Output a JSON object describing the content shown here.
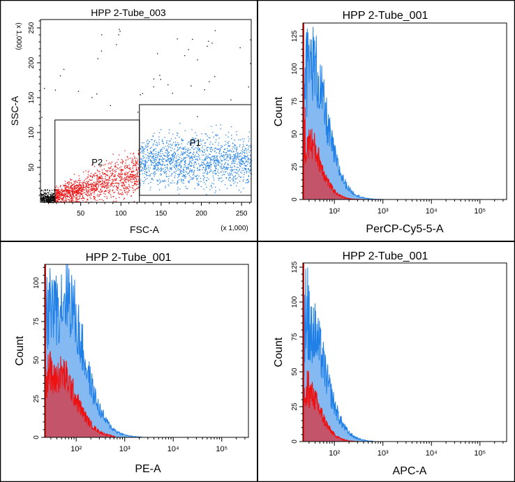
{
  "colors": {
    "p1": "#1f7fe6",
    "p2": "#ee1111",
    "overlap": "#b5366a",
    "black": "#000000",
    "frame": "#000000"
  },
  "chart_data": [
    {
      "type": "scatter",
      "title": "HPP 2-Tube_003",
      "xlabel": "FSC-A",
      "ylabel": "SSC-A",
      "xlim": [
        0,
        262
      ],
      "ylim": [
        0,
        262
      ],
      "x_multiplier_label": "(x 1,000)",
      "y_multiplier_label": "(x 1,000)",
      "xticks": [
        "50",
        "100",
        "150",
        "200",
        "250"
      ],
      "yticks": [
        "50",
        "100",
        "150",
        "200",
        "250"
      ],
      "gates": [
        {
          "name": "P1",
          "x": [
            123,
            262
          ],
          "y": [
            10,
            140
          ],
          "color": "#1f7fe6",
          "events": 1500,
          "y_center": 60
        },
        {
          "name": "P2",
          "x": [
            18,
            123
          ],
          "y": [
            0,
            118
          ],
          "color": "#ee1111",
          "events": 1300
        }
      ]
    },
    {
      "type": "histogram",
      "title": "HPP 2-Tube_001",
      "xlabel": "PerCP-Cy5-5-A",
      "ylabel": "Count",
      "xscale": "log",
      "xlim": [
        1.35,
        5.55
      ],
      "ylim": [
        0,
        135
      ],
      "xticks": [
        "10²",
        "10³",
        "10⁴",
        "10⁵"
      ],
      "yticks": [
        "0",
        "25",
        "50",
        "75",
        "100",
        "125"
      ],
      "series": [
        {
          "color": "#1f7fe6",
          "peak_log": 1.55,
          "peak": 105,
          "spike_max": 135,
          "decay": 0.42,
          "tail_end": 3.0
        },
        {
          "color": "#ee1111",
          "peak_log": 1.5,
          "peak": 45,
          "spike_max": 75,
          "decay": 0.33,
          "tail_end": 2.6
        }
      ]
    },
    {
      "type": "histogram",
      "title": "HPP 2-Tube_001",
      "xlabel": "PE-A",
      "ylabel": "Count",
      "xscale": "log",
      "xlim": [
        1.35,
        5.55
      ],
      "ylim": [
        0,
        112
      ],
      "xticks": [
        "10²",
        "10³",
        "10⁴",
        "10⁵"
      ],
      "yticks": [
        "0",
        "25",
        "50",
        "75",
        "100"
      ],
      "series": [
        {
          "color": "#1f7fe6",
          "peak_log": 1.8,
          "peak": 95,
          "spike_max": 112,
          "decay": 0.5,
          "tail_end": 3.35
        },
        {
          "color": "#ee1111",
          "peak_log": 1.7,
          "peak": 42,
          "spike_max": 62,
          "decay": 0.45,
          "tail_end": 2.8
        }
      ]
    },
    {
      "type": "histogram",
      "title": "HPP 2-Tube_001",
      "xlabel": "APC-A",
      "ylabel": "Count",
      "xscale": "log",
      "xlim": [
        1.35,
        5.55
      ],
      "ylim": [
        0,
        128
      ],
      "xticks": [
        "10²",
        "10³",
        "10⁴",
        "10⁵"
      ],
      "yticks": [
        "0",
        "25",
        "50",
        "75",
        "100",
        "125"
      ],
      "series": [
        {
          "color": "#1f7fe6",
          "peak_log": 1.55,
          "peak": 80,
          "spike_max": 128,
          "decay": 0.42,
          "tail_end": 2.8
        },
        {
          "color": "#ee1111",
          "peak_log": 1.5,
          "peak": 35,
          "spike_max": 52,
          "decay": 0.33,
          "tail_end": 2.5
        }
      ]
    }
  ]
}
